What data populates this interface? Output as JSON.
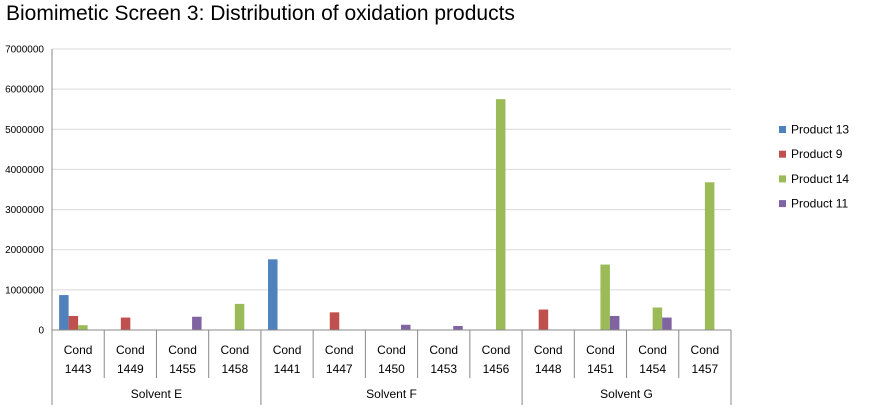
{
  "page": {
    "title": "Biomimetic Screen 3: Distribution of oxidation products"
  },
  "chart_data": {
    "type": "bar",
    "title": "Biomimetic Screen 3: Distribution of oxidation products",
    "xlabel": "",
    "ylabel": "",
    "ylim": [
      0,
      7000000
    ],
    "yticks": [
      "0",
      "1000000",
      "2000000",
      "3000000",
      "4000000",
      "5000000",
      "6000000",
      "7000000"
    ],
    "grid": true,
    "legend_position": "right",
    "categories": [
      "Cond 1443",
      "Cond 1449",
      "Cond 1455",
      "Cond 1458",
      "Cond 1441",
      "Cond 1447",
      "Cond 1450",
      "Cond 1453",
      "Cond 1456",
      "Cond 1448",
      "Cond 1451",
      "Cond 1454",
      "Cond 1457"
    ],
    "category_lines": [
      [
        "Cond",
        "1443"
      ],
      [
        "Cond",
        "1449"
      ],
      [
        "Cond",
        "1455"
      ],
      [
        "Cond",
        "1458"
      ],
      [
        "Cond",
        "1441"
      ],
      [
        "Cond",
        "1447"
      ],
      [
        "Cond",
        "1450"
      ],
      [
        "Cond",
        "1453"
      ],
      [
        "Cond",
        "1456"
      ],
      [
        "Cond",
        "1448"
      ],
      [
        "Cond",
        "1451"
      ],
      [
        "Cond",
        "1454"
      ],
      [
        "Cond",
        "1457"
      ]
    ],
    "groups": [
      {
        "label": "Solvent E",
        "count": 4
      },
      {
        "label": "Solvent F",
        "count": 5
      },
      {
        "label": "Solvent G",
        "count": 4
      }
    ],
    "series": [
      {
        "name": "Product 13",
        "color": "#4F81BD",
        "values": [
          870000,
          0,
          0,
          0,
          1760000,
          0,
          0,
          0,
          0,
          0,
          0,
          0,
          0
        ]
      },
      {
        "name": "Product 9",
        "color": "#C0504D",
        "values": [
          350000,
          310000,
          0,
          0,
          0,
          440000,
          0,
          0,
          0,
          510000,
          0,
          0,
          0
        ]
      },
      {
        "name": "Product 14",
        "color": "#9BBB59",
        "values": [
          120000,
          0,
          0,
          650000,
          0,
          0,
          0,
          0,
          5750000,
          0,
          1630000,
          560000,
          3680000
        ]
      },
      {
        "name": "Product 11",
        "color": "#8064A2",
        "values": [
          0,
          0,
          330000,
          0,
          0,
          0,
          130000,
          100000,
          0,
          0,
          350000,
          310000,
          0
        ]
      }
    ]
  }
}
